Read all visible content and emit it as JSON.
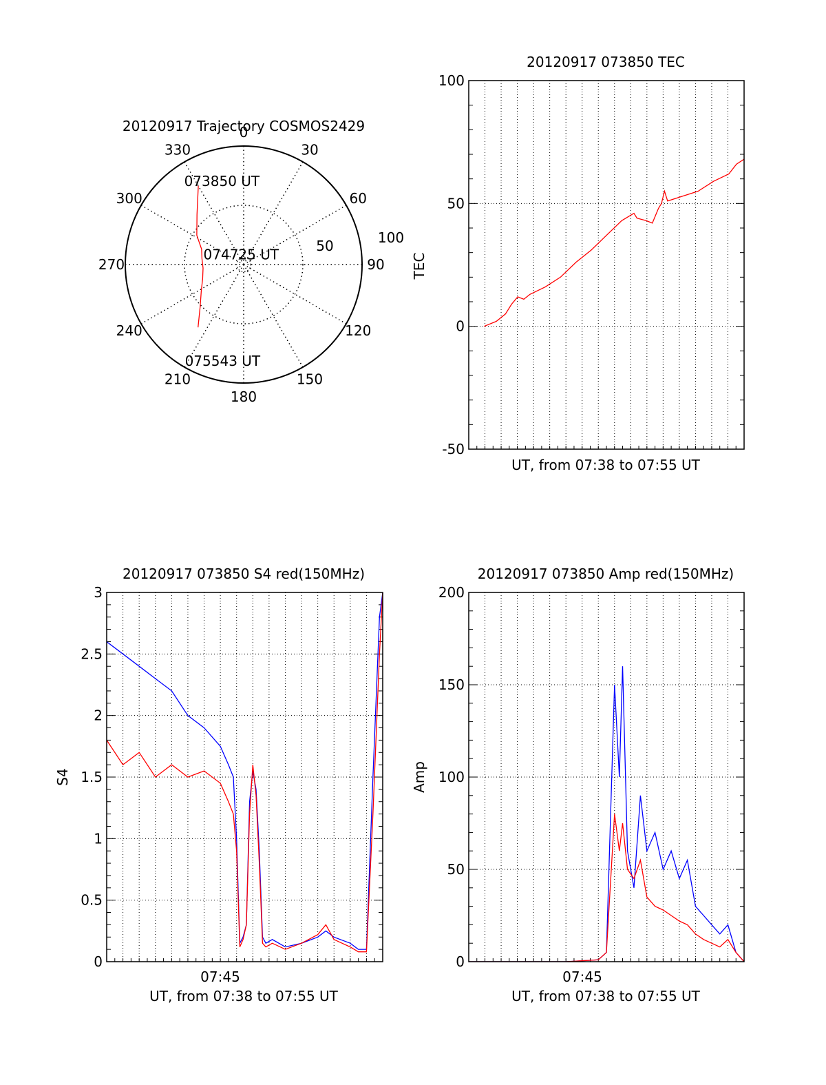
{
  "chart_data": [
    {
      "type": "polar",
      "title": "20120917 Trajectory COSMOS2429",
      "azimuth_labels": [
        "0",
        "30",
        "60",
        "90",
        "120",
        "150",
        "180",
        "210",
        "240",
        "270",
        "300",
        "330"
      ],
      "radial_labels": [
        "50",
        "100"
      ],
      "grid": true,
      "trajectory_color": "#ff0000",
      "trajectory": [
        {
          "az": 330,
          "el": 21
        },
        {
          "az": 317,
          "el": 38
        },
        {
          "az": 302,
          "el": 48
        },
        {
          "az": 290,
          "el": 56
        },
        {
          "az": 278,
          "el": 58
        },
        {
          "az": 265,
          "el": 59
        },
        {
          "az": 251,
          "el": 57
        },
        {
          "az": 238,
          "el": 52
        },
        {
          "az": 226,
          "el": 44
        },
        {
          "az": 216,
          "el": 31
        }
      ],
      "annotations": [
        {
          "text": "073850 UT",
          "az": 336,
          "el": 20
        },
        {
          "text": "074725 UT",
          "az": 300,
          "el": 74
        },
        {
          "text": "075543 UT",
          "az": 201,
          "el": 12
        }
      ]
    },
    {
      "type": "line",
      "title": "20120917 073850 TEC",
      "xlabel": "UT, from 07:38 to 07:55 UT",
      "ylabel": "TEC",
      "xlim": [
        0,
        18
      ],
      "ylim": [
        -50,
        100
      ],
      "yticks": [
        -50,
        0,
        50,
        100
      ],
      "grid": true,
      "series": [
        {
          "color": "#ff0000",
          "x": [
            1.0,
            1.8,
            2.4,
            2.8,
            3.2,
            3.6,
            4.0,
            5.0,
            6.0,
            7.0,
            8.0,
            9.0,
            10.0,
            10.8,
            11.0,
            11.6,
            12.0,
            12.4,
            12.6,
            12.8,
            13.0,
            14.0,
            15.0,
            16.0,
            17.0,
            17.5,
            18.0
          ],
          "y": [
            0,
            2,
            5,
            9,
            12,
            11,
            13,
            16,
            20,
            26,
            31,
            37,
            43,
            46,
            44,
            43,
            42,
            48,
            50,
            55,
            51,
            53,
            55,
            59,
            62,
            66,
            68
          ]
        }
      ]
    },
    {
      "type": "line",
      "title": "20120917 073850 S4 red(150MHz)",
      "xlabel": "UT, from 07:38 to 07:55 UT",
      "ylabel": "S4",
      "xlim": [
        0,
        17
      ],
      "ylim": [
        0,
        3
      ],
      "yticks": [
        0,
        0.5,
        1,
        1.5,
        2,
        2.5,
        3
      ],
      "xtick_label": "07:45",
      "grid": true,
      "series": [
        {
          "color": "#0000ff",
          "x": [
            0,
            1,
            2,
            3,
            4,
            5,
            6,
            7,
            7.5,
            7.8,
            8.0,
            8.2,
            8.4,
            8.6,
            8.8,
            9.0,
            9.2,
            9.4,
            9.6,
            9.8,
            10.2,
            11.0,
            12.0,
            13.0,
            13.5,
            14.0,
            15.0,
            15.5,
            16.0,
            16.4,
            16.8,
            17.0
          ],
          "y": [
            2.6,
            2.5,
            2.4,
            2.3,
            2.2,
            2.0,
            1.9,
            1.75,
            1.6,
            1.5,
            1.0,
            0.15,
            0.2,
            0.3,
            1.3,
            1.55,
            1.4,
            0.9,
            0.2,
            0.15,
            0.18,
            0.12,
            0.15,
            0.2,
            0.25,
            0.2,
            0.15,
            0.1,
            0.1,
            1.5,
            2.8,
            3.0
          ]
        },
        {
          "color": "#ff0000",
          "x": [
            0,
            1,
            2,
            3,
            4,
            5,
            6,
            7,
            7.5,
            7.8,
            8.0,
            8.2,
            8.4,
            8.6,
            8.8,
            9.0,
            9.2,
            9.4,
            9.6,
            9.8,
            10.2,
            11.0,
            12.0,
            13.0,
            13.5,
            14.0,
            15.0,
            15.5,
            16.0,
            16.4,
            16.8,
            17.0
          ],
          "y": [
            1.8,
            1.6,
            1.7,
            1.5,
            1.6,
            1.5,
            1.55,
            1.45,
            1.3,
            1.2,
            0.9,
            0.12,
            0.18,
            0.3,
            1.2,
            1.6,
            1.35,
            0.8,
            0.15,
            0.12,
            0.15,
            0.1,
            0.15,
            0.22,
            0.3,
            0.18,
            0.12,
            0.08,
            0.08,
            1.2,
            2.5,
            3.0
          ]
        }
      ]
    },
    {
      "type": "line",
      "title": "20120917 073850 Amp red(150MHz)",
      "xlabel": "UT, from 07:38 to 07:55 UT",
      "ylabel": "Amp",
      "xlim": [
        0,
        17
      ],
      "ylim": [
        0,
        200
      ],
      "yticks": [
        0,
        50,
        100,
        150,
        200
      ],
      "xtick_label": "07:45",
      "grid": true,
      "series": [
        {
          "color": "#0000ff",
          "x": [
            0,
            2,
            4,
            6,
            7,
            8,
            8.5,
            9.0,
            9.3,
            9.5,
            9.8,
            10.2,
            10.6,
            11.0,
            11.5,
            12.0,
            12.5,
            13.0,
            13.5,
            14.0,
            14.5,
            15.0,
            15.5,
            16.0,
            16.5,
            17.0
          ],
          "y": [
            0,
            0,
            0,
            0,
            0.5,
            1,
            5,
            150,
            100,
            160,
            60,
            40,
            90,
            60,
            70,
            50,
            60,
            45,
            55,
            30,
            25,
            20,
            15,
            20,
            5,
            0
          ]
        },
        {
          "color": "#ff0000",
          "x": [
            0,
            2,
            4,
            6,
            7,
            8,
            8.5,
            9.0,
            9.3,
            9.5,
            9.8,
            10.2,
            10.6,
            11.0,
            11.5,
            12.0,
            12.5,
            13.0,
            13.5,
            14.0,
            14.5,
            15.0,
            15.5,
            16.0,
            16.5,
            17.0
          ],
          "y": [
            0,
            0,
            0,
            0,
            0.5,
            1,
            5,
            80,
            60,
            75,
            50,
            45,
            55,
            35,
            30,
            28,
            25,
            22,
            20,
            15,
            12,
            10,
            8,
            12,
            5,
            0
          ]
        }
      ]
    }
  ]
}
